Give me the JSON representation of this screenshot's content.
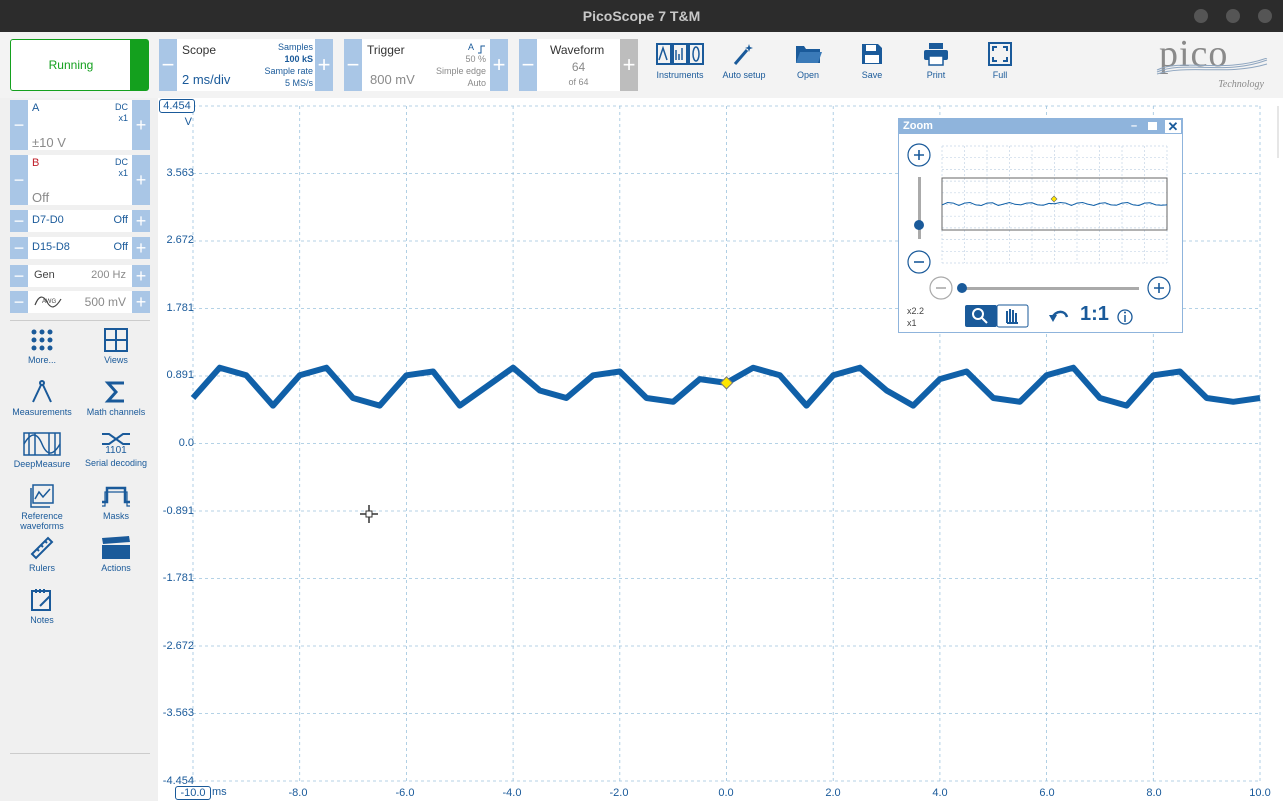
{
  "window": {
    "title": "PicoScope 7 T&M"
  },
  "status": {
    "label": "Running",
    "color": "#14a01e"
  },
  "scope": {
    "title": "Scope",
    "timebase": "2 ms/div",
    "samples_label": "Samples",
    "samples_value": "100 kS",
    "rate_label": "Sample rate",
    "rate_value": "5 MS/s"
  },
  "trigger": {
    "title": "Trigger",
    "channel": "A",
    "level": "800 mV",
    "percent": "50 %",
    "type": "Simple edge",
    "mode": "Auto"
  },
  "waveform": {
    "title": "Waveform",
    "current": "64",
    "total": "of 64"
  },
  "toolbar": {
    "instruments": "Instruments",
    "auto_setup": "Auto setup",
    "open": "Open",
    "save": "Save",
    "print": "Print",
    "full": "Full"
  },
  "logo": {
    "text": "pico",
    "subtext": "Technology"
  },
  "channels": {
    "a": {
      "name": "A",
      "coupling": "DC",
      "probe": "x1",
      "range": "±10 V",
      "color": "#1a5a9a"
    },
    "b": {
      "name": "B",
      "coupling": "DC",
      "probe": "x1",
      "range": "Off",
      "color": "#c0202a"
    }
  },
  "digital": [
    {
      "name": "D7-D0",
      "state": "Off"
    },
    {
      "name": "D15-D8",
      "state": "Off"
    }
  ],
  "generator": {
    "name": "Gen",
    "frequency": "200 Hz",
    "icon": "AWG",
    "amplitude": "500 mV"
  },
  "side_tools": {
    "more": "More...",
    "views": "Views",
    "measurements": "Measurements",
    "math": "Math channels",
    "deepmeasure": "DeepMeasure",
    "serial": "Serial decoding",
    "serial_icon_text": "1101",
    "ref1": "Reference",
    "ref2": "waveforms",
    "masks": "Masks",
    "rulers": "Rulers",
    "actions": "Actions",
    "notes": "Notes"
  },
  "plot": {
    "y_unit": "V",
    "x_unit": "ms",
    "y_top": "4.454",
    "y_bottom": "-4.454",
    "y_labels": [
      "3.563",
      "2.672",
      "1.781",
      "0.891",
      "0.0",
      "-0.891",
      "-1.781",
      "-2.672",
      "-3.563"
    ],
    "x_start": "-10.0",
    "x_labels": [
      "-8.0",
      "-6.0",
      "-4.0",
      "-2.0",
      "0.0",
      "2.0",
      "4.0",
      "6.0",
      "8.0",
      "10.0"
    ],
    "trace_color": "#1060a8"
  },
  "chart_data": {
    "type": "line",
    "xlabel": "ms",
    "ylabel": "V",
    "xlim": [
      -10,
      10
    ],
    "ylim": [
      -4.454,
      4.454
    ],
    "series": [
      {
        "values_desc": "periodic",
        "x": [
          -10,
          -9.5,
          -9.0,
          -8.5,
          -8.0,
          -7.5,
          -7.0,
          -6.5,
          -6.0,
          -5.5,
          -5.0,
          -4.5,
          -4.0,
          -3.5,
          -3.0,
          -2.5,
          -2.0,
          -1.5,
          -1.0,
          -0.5,
          0,
          0.5,
          1.0,
          1.5,
          2.0,
          2.5,
          3.0,
          3.5,
          4.0,
          4.5,
          5.0,
          5.5,
          6.0,
          6.5,
          7.0,
          7.5,
          8.0,
          8.5,
          9.0,
          9.5,
          10
        ],
        "y": [
          0.6,
          1.0,
          0.9,
          0.5,
          0.9,
          1.0,
          0.6,
          0.5,
          0.9,
          0.95,
          0.5,
          0.75,
          1.0,
          0.7,
          0.6,
          0.9,
          0.95,
          0.6,
          0.55,
          0.85,
          0.8,
          1.0,
          0.9,
          0.5,
          0.9,
          1.0,
          0.7,
          0.5,
          0.85,
          0.95,
          0.6,
          0.55,
          0.9,
          1.0,
          0.6,
          0.5,
          0.9,
          0.95,
          0.6,
          0.55,
          0.6
        ]
      }
    ]
  },
  "zoom": {
    "title": "Zoom",
    "h_factor": "x2.2",
    "v_factor": "x1",
    "reset_label": "1:1"
  }
}
